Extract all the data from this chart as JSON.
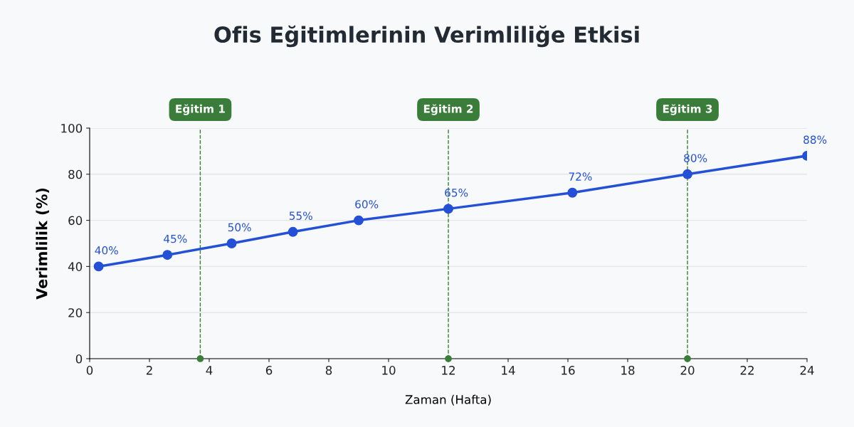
{
  "chart_data": {
    "type": "line",
    "title": "Ofis Eğitimlerinin Verimliliğe Etkisi",
    "xlabel": "Zaman (Hafta)",
    "ylabel": "Verimlilik (%)",
    "x": [
      0.3,
      2.6,
      4.75,
      6.8,
      9.0,
      12,
      16.15,
      20,
      24
    ],
    "series": [
      {
        "color": "#2450d6",
        "values": [
          40,
          45,
          50,
          55,
          60,
          65,
          72,
          80,
          88
        ],
        "value_labels": [
          "40%",
          "45%",
          "50%",
          "55%",
          "60%",
          "65%",
          "72%",
          "80%",
          "88%"
        ]
      }
    ],
    "xlim": [
      0,
      24
    ],
    "xticks": [
      0,
      2,
      4,
      6,
      8,
      10,
      12,
      14,
      16,
      18,
      20,
      22,
      24
    ],
    "ylim": [
      0,
      100
    ],
    "yticks": [
      0,
      20,
      40,
      60,
      80,
      100
    ],
    "grid": "y",
    "marker": "circle",
    "line_style": "solid",
    "legend": false,
    "ref_lines": [
      {
        "axis": "x",
        "value": 3.7,
        "label": "Eğitim 1",
        "color": "#3a7d3a",
        "line_style": "dashed"
      },
      {
        "axis": "x",
        "value": 12,
        "label": "Eğitim 2",
        "color": "#3a7d3a",
        "line_style": "dashed"
      },
      {
        "axis": "x",
        "value": 20,
        "label": "Eğitim 3",
        "color": "#3a7d3a",
        "line_style": "dashed"
      }
    ]
  }
}
